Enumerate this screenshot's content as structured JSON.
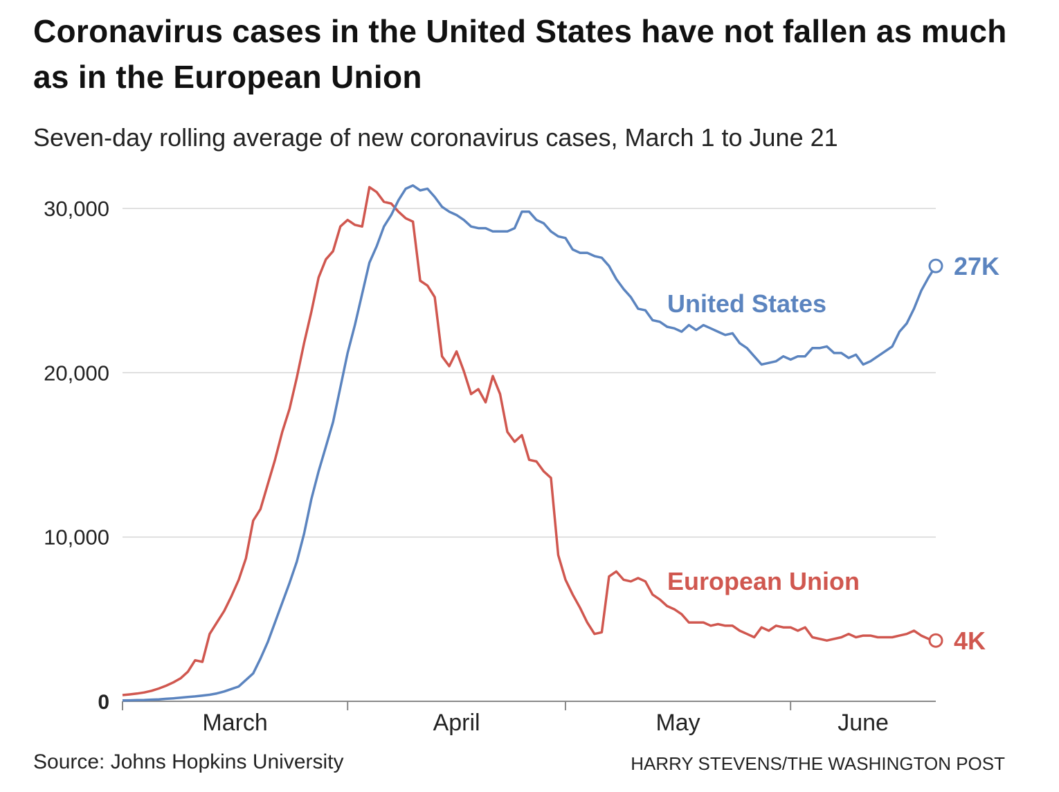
{
  "title": "Coronavirus cases in the United States have not fallen as much as in the European Union",
  "subtitle": "Seven-day rolling average of new coronavirus cases, March 1 to June 21",
  "source": "Source: Johns Hopkins University",
  "credit": "HARRY STEVENS/THE WASHINGTON POST",
  "chart_data": {
    "type": "line",
    "title": "Coronavirus cases in the United States have not fallen as much as in the European Union",
    "xlabel": "",
    "ylabel": "",
    "x_start": "March 1",
    "x_end": "June 21",
    "xlim_days": [
      0,
      112
    ],
    "ylim": [
      0,
      32000
    ],
    "grid": true,
    "yticks": [
      0,
      10000,
      20000,
      30000
    ],
    "ytick_labels": [
      "0",
      "10,000",
      "20,000",
      "30,000"
    ],
    "month_ticks_days": [
      0,
      31,
      61,
      92
    ],
    "month_labels": [
      "March",
      "April",
      "May",
      "June"
    ],
    "month_label_days": [
      15.5,
      46,
      76.5,
      102
    ],
    "series": [
      {
        "name": "United States",
        "color": "#5b84bf",
        "end_label": "27K",
        "values": [
          50,
          60,
          70,
          80,
          100,
          120,
          150,
          180,
          220,
          260,
          300,
          350,
          400,
          480,
          600,
          750,
          900,
          1300,
          1700,
          2600,
          3600,
          4800,
          6000,
          7200,
          8500,
          10200,
          12300,
          14000,
          15500,
          17000,
          19100,
          21200,
          22900,
          24800,
          26700,
          27700,
          28900,
          29600,
          30500,
          31200,
          31400,
          31100,
          31200,
          30700,
          30100,
          29800,
          29600,
          29300,
          28900,
          28800,
          28800,
          28600,
          28600,
          28600,
          28800,
          29800,
          29800,
          29300,
          29100,
          28600,
          28300,
          28200,
          27500,
          27300,
          27300,
          27100,
          27000,
          26500,
          25700,
          25100,
          24600,
          23900,
          23800,
          23200,
          23100,
          22800,
          22700,
          22500,
          22900,
          22600,
          22900,
          22700,
          22500,
          22300,
          22400,
          21800,
          21500,
          21000,
          20500,
          20600,
          20700,
          21000,
          20800,
          21000,
          21000,
          21500,
          21500,
          21600,
          21200,
          21200,
          20900,
          21100,
          20500,
          20700,
          21000,
          21300,
          21600,
          22500,
          23000,
          23900,
          25000,
          25800,
          26500
        ]
      },
      {
        "name": "European Union",
        "color": "#d0574f",
        "end_label": "4K",
        "values": [
          380,
          420,
          470,
          540,
          640,
          780,
          950,
          1150,
          1400,
          1800,
          2500,
          2400,
          4100,
          4800,
          5500,
          6400,
          7400,
          8700,
          11000,
          11700,
          13200,
          14700,
          16400,
          17800,
          19700,
          21800,
          23700,
          25800,
          26900,
          27400,
          28900,
          29300,
          29000,
          28900,
          31300,
          31000,
          30400,
          30300,
          29800,
          29400,
          29200,
          25600,
          25300,
          24600,
          21000,
          20400,
          21300,
          20100,
          18700,
          19000,
          18200,
          19800,
          18700,
          16400,
          15800,
          16200,
          14700,
          14600,
          14000,
          13600,
          8900,
          7400,
          6500,
          5700,
          4800,
          4100,
          4200,
          7600,
          7900,
          7400,
          7300,
          7500,
          7300,
          6500,
          6200,
          5800,
          5600,
          5300,
          4800,
          4800,
          4800,
          4600,
          4700,
          4600,
          4600,
          4300,
          4100,
          3900,
          4500,
          4300,
          4600,
          4500,
          4500,
          4300,
          4500,
          3900,
          3800,
          3700,
          3800,
          3900,
          4100,
          3900,
          4000,
          4000,
          3900,
          3900,
          3900,
          4000,
          4100,
          4300,
          4000,
          3800,
          3700
        ]
      }
    ]
  }
}
